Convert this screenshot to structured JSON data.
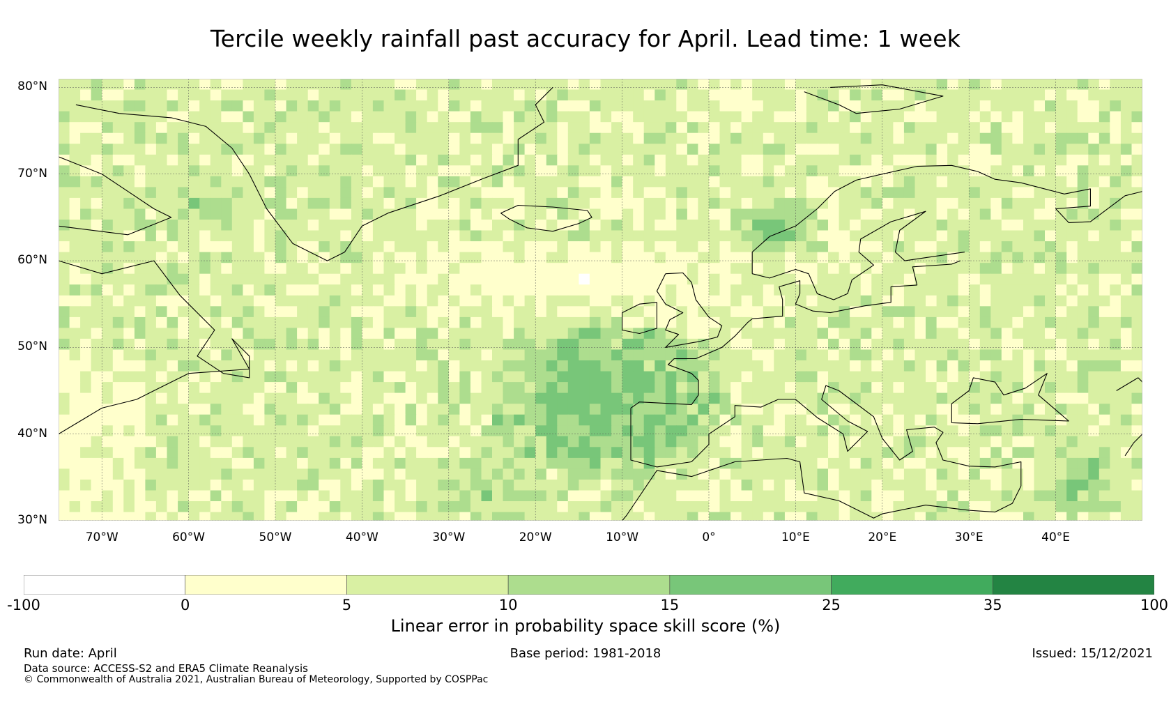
{
  "title": "Tercile weekly rainfall past accuracy for April. Lead time: 1 week",
  "map": {
    "lat_labels": [
      "80°N",
      "70°N",
      "60°N",
      "50°N",
      "40°N",
      "30°N"
    ],
    "lon_labels": [
      "70°W",
      "60°W",
      "50°W",
      "40°W",
      "30°W",
      "20°W",
      "10°W",
      "0°",
      "10°E",
      "20°E",
      "30°E",
      "40°E"
    ],
    "lat_values": [
      80,
      70,
      60,
      50,
      40,
      30
    ],
    "lon_values": [
      -70,
      -60,
      -50,
      -40,
      -30,
      -20,
      -10,
      0,
      10,
      20,
      30,
      40
    ],
    "lon_range": [
      -75,
      50
    ],
    "lat_range": [
      30,
      81
    ],
    "grid": true,
    "coastlines": true
  },
  "colorbar": {
    "tick_labels": [
      "-100",
      "0",
      "5",
      "10",
      "15",
      "25",
      "35",
      "100"
    ],
    "colors": [
      "#ffffff",
      "#ffffcc",
      "#d9f0a3",
      "#addd8e",
      "#78c679",
      "#41ab5d",
      "#238443"
    ],
    "label": "Linear error in probability space skill score (%)"
  },
  "footer": {
    "run_date": "Run date: April",
    "base_period": "Base period: 1981-2018",
    "issued": "Issued: 15/12/2021",
    "data_source": "Data source: ACCESS-S2 and ERA5 Climate Reanalysis",
    "copyright": "© Commonwealth of Australia 2021, Australian Bureau of Meteorology, Supported by COSPPac"
  }
}
